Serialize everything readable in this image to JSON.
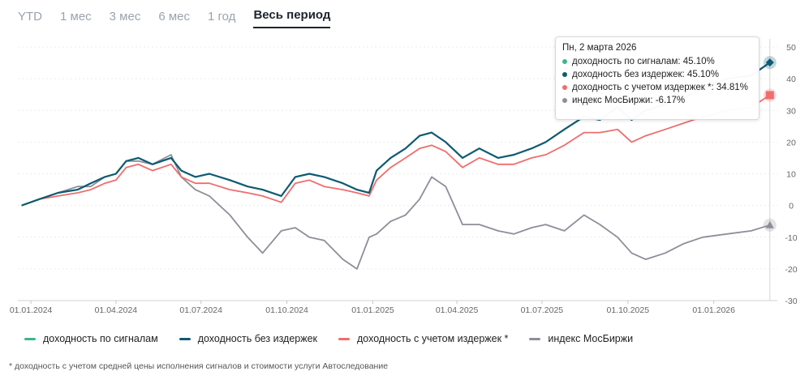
{
  "tabs": [
    {
      "label": "YTD",
      "active": false
    },
    {
      "label": "1 мес",
      "active": false
    },
    {
      "label": "3 мес",
      "active": false
    },
    {
      "label": "6 мес",
      "active": false
    },
    {
      "label": "1 год",
      "active": false
    },
    {
      "label": "Весь период",
      "active": true
    }
  ],
  "tooltip": {
    "date": "Пн, 2 марта 2026",
    "rows": [
      {
        "text": "доходность по сигналам: 45.10%",
        "color": "#3fb391"
      },
      {
        "text": "доходность без издержек: 45.10%",
        "color": "#0f5b72"
      },
      {
        "text": "доходность с учетом издержек *: 34.81%",
        "color": "#ef6d6d"
      },
      {
        "text": "индекс МосБиржи: -6.17%",
        "color": "#8e8e9a"
      }
    ]
  },
  "legend": [
    {
      "label": "доходность по сигналам",
      "color": "#3fb391"
    },
    {
      "label": "доходность без издержек",
      "color": "#0f5b72"
    },
    {
      "label": "доходность с учетом издержек *",
      "color": "#ef6d6d"
    },
    {
      "label": "индекс МосБиржи",
      "color": "#8e8e9a"
    }
  ],
  "footnote": "* доходность с учетом средней цены исполнения сигналов и стоимости услуги Автоследование",
  "chart_data": {
    "type": "line",
    "ylim": [
      -30,
      50
    ],
    "yticks": [
      50,
      40,
      30,
      20,
      10,
      0,
      -10,
      -20,
      -30
    ],
    "xlim": [
      "2023-12-18",
      "2026-03-10"
    ],
    "xticks": [
      {
        "date": "2024-01-01",
        "label": "01.01.2024"
      },
      {
        "date": "2024-04-01",
        "label": "01.04.2024"
      },
      {
        "date": "2024-07-01",
        "label": "01.07.2024"
      },
      {
        "date": "2024-10-01",
        "label": "01.10.2024"
      },
      {
        "date": "2025-01-01",
        "label": "01.01.2025"
      },
      {
        "date": "2025-04-01",
        "label": "01.04.2025"
      },
      {
        "date": "2025-07-01",
        "label": "01.07.2025"
      },
      {
        "date": "2025-10-01",
        "label": "01.10.2025"
      },
      {
        "date": "2026-01-01",
        "label": "01.01.2026"
      }
    ],
    "series": [
      {
        "name": "доходность по сигналам",
        "color": "#3fb391",
        "points": [
          [
            "2023-12-22",
            0
          ],
          [
            "2024-01-10",
            2
          ],
          [
            "2024-01-30",
            4
          ],
          [
            "2024-02-20",
            5
          ],
          [
            "2024-03-05",
            7
          ],
          [
            "2024-03-20",
            9
          ],
          [
            "2024-04-01",
            10
          ],
          [
            "2024-04-12",
            14
          ],
          [
            "2024-04-25",
            15
          ],
          [
            "2024-05-10",
            13
          ],
          [
            "2024-05-30",
            15
          ],
          [
            "2024-06-10",
            11
          ],
          [
            "2024-06-25",
            9
          ],
          [
            "2024-07-10",
            10
          ],
          [
            "2024-08-01",
            8
          ],
          [
            "2024-08-20",
            6
          ],
          [
            "2024-09-05",
            5
          ],
          [
            "2024-09-25",
            3
          ],
          [
            "2024-10-10",
            9
          ],
          [
            "2024-10-25",
            10
          ],
          [
            "2024-11-10",
            9
          ],
          [
            "2024-11-30",
            7
          ],
          [
            "2024-12-15",
            5
          ],
          [
            "2024-12-28",
            4
          ],
          [
            "2025-01-05",
            11
          ],
          [
            "2025-01-20",
            15
          ],
          [
            "2025-02-05",
            18
          ],
          [
            "2025-02-20",
            22
          ],
          [
            "2025-03-05",
            23
          ],
          [
            "2025-03-20",
            20
          ],
          [
            "2025-04-07",
            15
          ],
          [
            "2025-04-25",
            18
          ],
          [
            "2025-05-15",
            15
          ],
          [
            "2025-06-01",
            16
          ],
          [
            "2025-06-20",
            18
          ],
          [
            "2025-07-05",
            20
          ],
          [
            "2025-07-25",
            24
          ],
          [
            "2025-08-15",
            28
          ],
          [
            "2025-09-01",
            27
          ],
          [
            "2025-09-20",
            31
          ],
          [
            "2025-10-05",
            27
          ],
          [
            "2025-10-20",
            30
          ],
          [
            "2025-11-10",
            32
          ],
          [
            "2025-11-30",
            34
          ],
          [
            "2025-12-20",
            37
          ],
          [
            "2026-01-15",
            40
          ],
          [
            "2026-02-10",
            41
          ],
          [
            "2026-03-02",
            45.1
          ]
        ]
      },
      {
        "name": "доходность без издержек",
        "color": "#0f5b72",
        "points": [
          [
            "2023-12-22",
            0
          ],
          [
            "2024-01-10",
            2
          ],
          [
            "2024-01-30",
            4
          ],
          [
            "2024-02-20",
            5
          ],
          [
            "2024-03-05",
            7
          ],
          [
            "2024-03-20",
            9
          ],
          [
            "2024-04-01",
            10
          ],
          [
            "2024-04-12",
            14
          ],
          [
            "2024-04-25",
            15
          ],
          [
            "2024-05-10",
            13
          ],
          [
            "2024-05-30",
            15
          ],
          [
            "2024-06-10",
            11
          ],
          [
            "2024-06-25",
            9
          ],
          [
            "2024-07-10",
            10
          ],
          [
            "2024-08-01",
            8
          ],
          [
            "2024-08-20",
            6
          ],
          [
            "2024-09-05",
            5
          ],
          [
            "2024-09-25",
            3
          ],
          [
            "2024-10-10",
            9
          ],
          [
            "2024-10-25",
            10
          ],
          [
            "2024-11-10",
            9
          ],
          [
            "2024-11-30",
            7
          ],
          [
            "2024-12-15",
            5
          ],
          [
            "2024-12-28",
            4
          ],
          [
            "2025-01-05",
            11
          ],
          [
            "2025-01-20",
            15
          ],
          [
            "2025-02-05",
            18
          ],
          [
            "2025-02-20",
            22
          ],
          [
            "2025-03-05",
            23
          ],
          [
            "2025-03-20",
            20
          ],
          [
            "2025-04-07",
            15
          ],
          [
            "2025-04-25",
            18
          ],
          [
            "2025-05-15",
            15
          ],
          [
            "2025-06-01",
            16
          ],
          [
            "2025-06-20",
            18
          ],
          [
            "2025-07-05",
            20
          ],
          [
            "2025-07-25",
            24
          ],
          [
            "2025-08-15",
            28
          ],
          [
            "2025-09-01",
            27
          ],
          [
            "2025-09-20",
            31
          ],
          [
            "2025-10-05",
            27
          ],
          [
            "2025-10-20",
            30
          ],
          [
            "2025-11-10",
            32
          ],
          [
            "2025-11-30",
            34
          ],
          [
            "2025-12-20",
            37
          ],
          [
            "2026-01-15",
            40
          ],
          [
            "2026-02-10",
            41
          ],
          [
            "2026-03-02",
            45.1
          ]
        ]
      },
      {
        "name": "доходность с учетом издержек *",
        "color": "#ef6d6d",
        "points": [
          [
            "2023-12-22",
            0
          ],
          [
            "2024-01-10",
            2
          ],
          [
            "2024-01-30",
            3
          ],
          [
            "2024-02-20",
            4
          ],
          [
            "2024-03-05",
            5
          ],
          [
            "2024-03-20",
            7
          ],
          [
            "2024-04-01",
            8
          ],
          [
            "2024-04-12",
            12
          ],
          [
            "2024-04-25",
            13
          ],
          [
            "2024-05-10",
            11
          ],
          [
            "2024-05-30",
            13
          ],
          [
            "2024-06-10",
            9
          ],
          [
            "2024-06-25",
            7
          ],
          [
            "2024-07-10",
            7
          ],
          [
            "2024-08-01",
            5
          ],
          [
            "2024-08-20",
            4
          ],
          [
            "2024-09-05",
            3
          ],
          [
            "2024-09-25",
            1
          ],
          [
            "2024-10-10",
            7
          ],
          [
            "2024-10-25",
            8
          ],
          [
            "2024-11-10",
            6
          ],
          [
            "2024-11-30",
            5
          ],
          [
            "2024-12-15",
            4
          ],
          [
            "2024-12-28",
            3
          ],
          [
            "2025-01-05",
            8
          ],
          [
            "2025-01-20",
            12
          ],
          [
            "2025-02-05",
            15
          ],
          [
            "2025-02-20",
            18
          ],
          [
            "2025-03-05",
            19
          ],
          [
            "2025-03-20",
            17
          ],
          [
            "2025-04-07",
            12
          ],
          [
            "2025-04-25",
            15
          ],
          [
            "2025-05-15",
            13
          ],
          [
            "2025-06-01",
            13
          ],
          [
            "2025-06-20",
            15
          ],
          [
            "2025-07-05",
            16
          ],
          [
            "2025-07-25",
            19
          ],
          [
            "2025-08-15",
            23
          ],
          [
            "2025-09-01",
            23
          ],
          [
            "2025-09-20",
            24
          ],
          [
            "2025-10-05",
            20
          ],
          [
            "2025-10-20",
            22
          ],
          [
            "2025-11-10",
            24
          ],
          [
            "2025-11-30",
            26
          ],
          [
            "2025-12-20",
            28
          ],
          [
            "2026-01-15",
            30
          ],
          [
            "2026-02-10",
            31
          ],
          [
            "2026-03-02",
            34.81
          ]
        ]
      },
      {
        "name": "индекс МосБиржи",
        "color": "#8e8e9a",
        "points": [
          [
            "2023-12-22",
            0
          ],
          [
            "2024-01-10",
            2
          ],
          [
            "2024-01-30",
            4
          ],
          [
            "2024-02-20",
            6
          ],
          [
            "2024-03-05",
            6
          ],
          [
            "2024-03-20",
            9
          ],
          [
            "2024-04-01",
            10
          ],
          [
            "2024-04-12",
            14
          ],
          [
            "2024-04-25",
            14
          ],
          [
            "2024-05-10",
            13
          ],
          [
            "2024-05-30",
            16
          ],
          [
            "2024-06-10",
            9
          ],
          [
            "2024-06-25",
            5
          ],
          [
            "2024-07-10",
            3
          ],
          [
            "2024-08-01",
            -3
          ],
          [
            "2024-08-20",
            -10
          ],
          [
            "2024-09-05",
            -15
          ],
          [
            "2024-09-25",
            -8
          ],
          [
            "2024-10-10",
            -7
          ],
          [
            "2024-10-25",
            -10
          ],
          [
            "2024-11-10",
            -11
          ],
          [
            "2024-11-30",
            -17
          ],
          [
            "2024-12-15",
            -20
          ],
          [
            "2024-12-28",
            -10
          ],
          [
            "2025-01-05",
            -9
          ],
          [
            "2025-01-20",
            -5
          ],
          [
            "2025-02-05",
            -3
          ],
          [
            "2025-02-20",
            2
          ],
          [
            "2025-03-05",
            9
          ],
          [
            "2025-03-20",
            6
          ],
          [
            "2025-04-07",
            -6
          ],
          [
            "2025-04-25",
            -6
          ],
          [
            "2025-05-15",
            -8
          ],
          [
            "2025-06-01",
            -9
          ],
          [
            "2025-06-20",
            -7
          ],
          [
            "2025-07-05",
            -6
          ],
          [
            "2025-07-25",
            -8
          ],
          [
            "2025-08-15",
            -3
          ],
          [
            "2025-09-01",
            -6
          ],
          [
            "2025-09-20",
            -10
          ],
          [
            "2025-10-05",
            -15
          ],
          [
            "2025-10-20",
            -17
          ],
          [
            "2025-11-10",
            -15
          ],
          [
            "2025-11-30",
            -12
          ],
          [
            "2025-12-20",
            -10
          ],
          [
            "2026-01-15",
            -9
          ],
          [
            "2026-02-10",
            -8
          ],
          [
            "2026-03-02",
            -6.17
          ]
        ]
      }
    ],
    "markers": [
      {
        "series": "доходность без издержек",
        "shape": "diamond",
        "value": 45.1
      },
      {
        "series": "доходность с учетом издержек *",
        "shape": "square",
        "value": 34.81
      },
      {
        "series": "индекс МосБиржи",
        "shape": "triangle",
        "value": -6.17
      }
    ],
    "hover_date": "2026-03-02"
  }
}
